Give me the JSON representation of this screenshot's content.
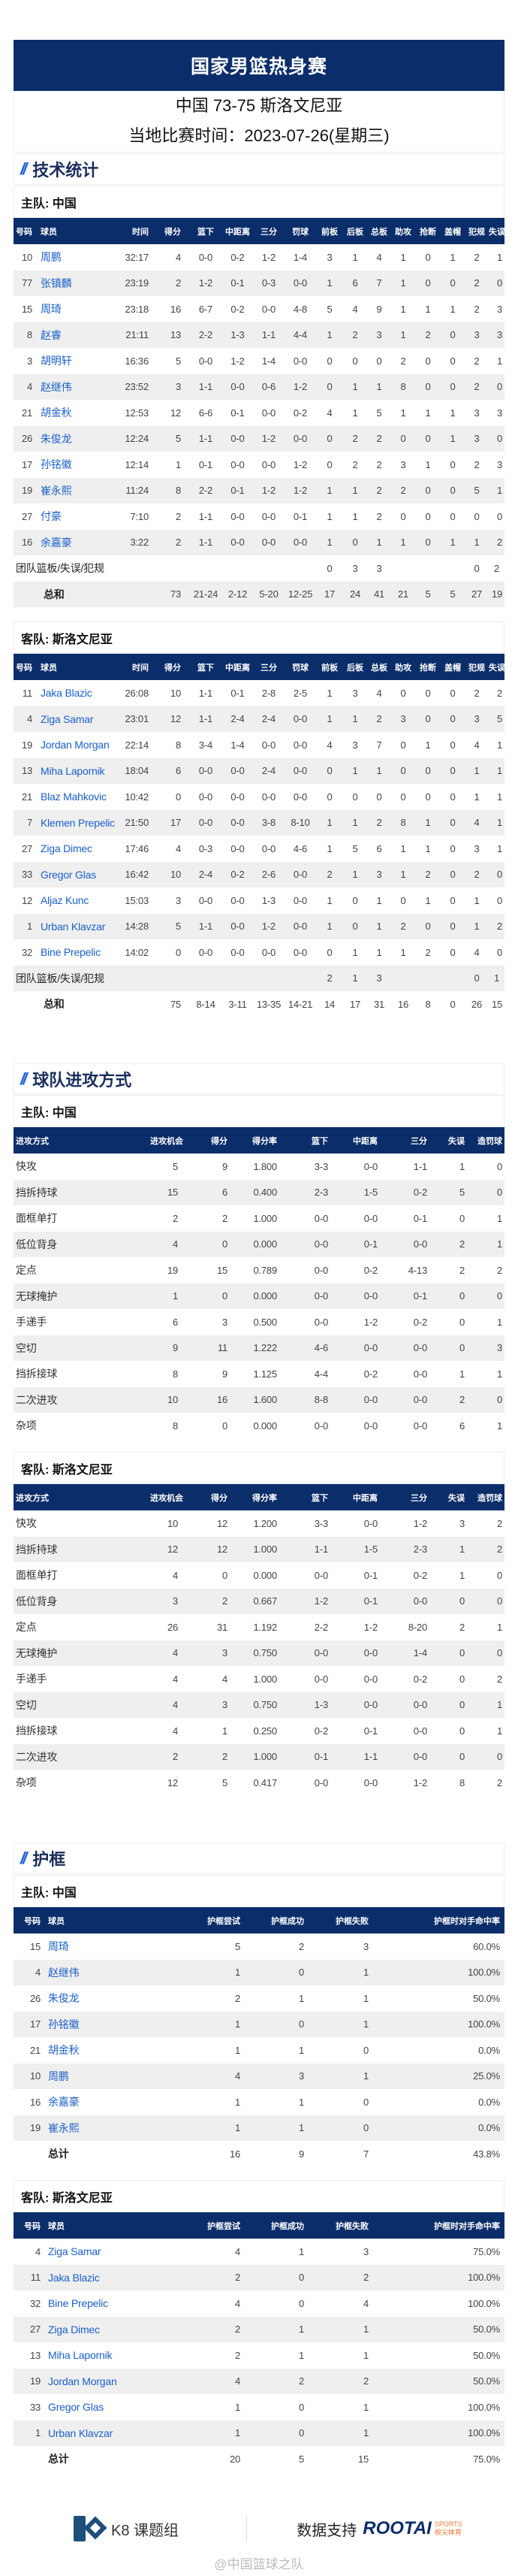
{
  "colors": {
    "navy": "#0b2e6a",
    "accent": "#1f5fd6",
    "name": "#1a5fc8",
    "row_alt": "#efefef"
  },
  "header": {
    "title": "国家男篮热身赛",
    "score_line": "中国 73-75 斯洛文尼亚",
    "date_line": "当地比赛时间：2023-07-26(星期三)"
  },
  "sections": {
    "stats": "技术统计",
    "offense": "球队进攻方式",
    "rim": "护框",
    "slash": "//"
  },
  "teams": {
    "home": "主队: 中国",
    "away": "客队: 斯洛文尼亚"
  },
  "box_headers": [
    "号码",
    "球员",
    "时间",
    "得分",
    "篮下",
    "中距离",
    "三分",
    "罚球",
    "前板",
    "后板",
    "总板",
    "助攻",
    "抢断",
    "盖帽",
    "犯规",
    "失误"
  ],
  "box_home": {
    "rows": [
      [
        "10",
        "周鹏",
        "32:17",
        "4",
        "0-0",
        "0-2",
        "1-2",
        "1-4",
        "3",
        "1",
        "4",
        "1",
        "0",
        "1",
        "2",
        "1"
      ],
      [
        "77",
        "张镇麟",
        "23:19",
        "2",
        "1-2",
        "0-1",
        "0-3",
        "0-0",
        "1",
        "6",
        "7",
        "1",
        "0",
        "0",
        "2",
        "0"
      ],
      [
        "15",
        "周琦",
        "23:18",
        "16",
        "6-7",
        "0-2",
        "0-0",
        "4-8",
        "5",
        "4",
        "9",
        "1",
        "1",
        "1",
        "2",
        "3"
      ],
      [
        "8",
        "赵睿",
        "21:11",
        "13",
        "2-2",
        "1-3",
        "1-1",
        "4-4",
        "1",
        "2",
        "3",
        "1",
        "2",
        "0",
        "3",
        "3"
      ],
      [
        "3",
        "胡明轩",
        "16:36",
        "5",
        "0-0",
        "1-2",
        "1-4",
        "0-0",
        "0",
        "0",
        "0",
        "2",
        "0",
        "0",
        "2",
        "1"
      ],
      [
        "4",
        "赵继伟",
        "23:52",
        "3",
        "1-1",
        "0-0",
        "0-6",
        "1-2",
        "0",
        "1",
        "1",
        "8",
        "0",
        "0",
        "2",
        "0"
      ],
      [
        "21",
        "胡金秋",
        "12:53",
        "12",
        "6-6",
        "0-1",
        "0-0",
        "0-2",
        "4",
        "1",
        "5",
        "1",
        "1",
        "1",
        "3",
        "3"
      ],
      [
        "26",
        "朱俊龙",
        "12:24",
        "5",
        "1-1",
        "0-0",
        "1-2",
        "0-0",
        "0",
        "2",
        "2",
        "0",
        "0",
        "1",
        "3",
        "0"
      ],
      [
        "17",
        "孙铭徽",
        "12:14",
        "1",
        "0-1",
        "0-0",
        "0-0",
        "1-2",
        "0",
        "2",
        "2",
        "3",
        "1",
        "0",
        "2",
        "3"
      ],
      [
        "19",
        "崔永熙",
        "11:24",
        "8",
        "2-2",
        "0-1",
        "1-2",
        "1-2",
        "1",
        "1",
        "2",
        "2",
        "0",
        "0",
        "5",
        "1"
      ],
      [
        "27",
        "付豪",
        "7:10",
        "2",
        "1-1",
        "0-0",
        "0-0",
        "0-1",
        "1",
        "1",
        "2",
        "0",
        "0",
        "0",
        "0",
        "0"
      ],
      [
        "16",
        "余嘉豪",
        "3:22",
        "2",
        "1-1",
        "0-0",
        "0-0",
        "0-0",
        "1",
        "0",
        "1",
        "1",
        "0",
        "1",
        "1",
        "2"
      ]
    ],
    "team_row": {
      "label": "团队篮板/失误/犯规",
      "values": [
        "",
        "",
        "",
        "",
        "",
        "0",
        "3",
        "3",
        "",
        "",
        "",
        "0",
        "2"
      ]
    },
    "total_row": {
      "label": "总和",
      "values": [
        "73",
        "21-24",
        "2-12",
        "5-20",
        "12-25",
        "17",
        "24",
        "41",
        "21",
        "5",
        "5",
        "27",
        "19"
      ]
    }
  },
  "box_away": {
    "rows": [
      [
        "11",
        "Jaka Blazic",
        "26:08",
        "10",
        "1-1",
        "0-1",
        "2-8",
        "2-5",
        "1",
        "3",
        "4",
        "0",
        "0",
        "0",
        "2",
        "2"
      ],
      [
        "4",
        "Ziga Samar",
        "23:01",
        "12",
        "1-1",
        "2-4",
        "2-4",
        "0-0",
        "1",
        "1",
        "2",
        "3",
        "0",
        "0",
        "3",
        "5"
      ],
      [
        "19",
        "Jordan Morgan",
        "22:14",
        "8",
        "3-4",
        "1-4",
        "0-0",
        "0-0",
        "4",
        "3",
        "7",
        "0",
        "1",
        "0",
        "4",
        "1"
      ],
      [
        "13",
        "Miha Lapornik",
        "18:04",
        "6",
        "0-0",
        "0-0",
        "2-4",
        "0-0",
        "0",
        "1",
        "1",
        "0",
        "0",
        "0",
        "1",
        "1"
      ],
      [
        "21",
        "Blaz Mahkovic",
        "10:42",
        "0",
        "0-0",
        "0-0",
        "0-0",
        "0-0",
        "0",
        "0",
        "0",
        "0",
        "0",
        "0",
        "1",
        "1"
      ],
      [
        "7",
        "Klemen Prepelic",
        "21:50",
        "17",
        "0-0",
        "0-0",
        "3-8",
        "8-10",
        "1",
        "1",
        "2",
        "8",
        "1",
        "0",
        "4",
        "1"
      ],
      [
        "27",
        "Ziga Dimec",
        "17:46",
        "4",
        "0-3",
        "0-0",
        "0-0",
        "4-6",
        "1",
        "5",
        "6",
        "1",
        "1",
        "0",
        "3",
        "1"
      ],
      [
        "33",
        "Gregor Glas",
        "16:42",
        "10",
        "2-4",
        "0-2",
        "2-6",
        "0-0",
        "2",
        "1",
        "3",
        "1",
        "2",
        "0",
        "2",
        "0"
      ],
      [
        "12",
        "Aljaz Kunc",
        "15:03",
        "3",
        "0-0",
        "0-0",
        "1-3",
        "0-0",
        "1",
        "0",
        "1",
        "0",
        "1",
        "0",
        "1",
        "0"
      ],
      [
        "1",
        "Urban Klavzar",
        "14:28",
        "5",
        "1-1",
        "0-0",
        "1-2",
        "0-0",
        "1",
        "0",
        "1",
        "2",
        "0",
        "0",
        "1",
        "2"
      ],
      [
        "32",
        "Bine Prepelic",
        "14:02",
        "0",
        "0-0",
        "0-0",
        "0-0",
        "0-0",
        "0",
        "1",
        "1",
        "1",
        "2",
        "0",
        "4",
        "0"
      ]
    ],
    "team_row": {
      "label": "团队篮板/失误/犯规",
      "values": [
        "",
        "",
        "",
        "",
        "",
        "2",
        "1",
        "3",
        "",
        "",
        "",
        "0",
        "1"
      ]
    },
    "total_row": {
      "label": "总和",
      "values": [
        "75",
        "8-14",
        "3-11",
        "13-35",
        "14-21",
        "14",
        "17",
        "31",
        "16",
        "8",
        "0",
        "26",
        "15"
      ]
    }
  },
  "off_headers": [
    "进攻方式",
    "进攻机会",
    "得分",
    "得分率",
    "篮下",
    "中距离",
    "三分",
    "失误",
    "造罚球"
  ],
  "off_home": [
    [
      "快攻",
      "5",
      "9",
      "1.800",
      "3-3",
      "0-0",
      "1-1",
      "1",
      "0"
    ],
    [
      "挡拆持球",
      "15",
      "6",
      "0.400",
      "2-3",
      "1-5",
      "0-2",
      "5",
      "0"
    ],
    [
      "面框单打",
      "2",
      "2",
      "1.000",
      "0-0",
      "0-0",
      "0-1",
      "0",
      "1"
    ],
    [
      "低位背身",
      "4",
      "0",
      "0.000",
      "0-0",
      "0-1",
      "0-0",
      "2",
      "1"
    ],
    [
      "定点",
      "19",
      "15",
      "0.789",
      "0-0",
      "0-2",
      "4-13",
      "2",
      "2"
    ],
    [
      "无球掩护",
      "1",
      "0",
      "0.000",
      "0-0",
      "0-0",
      "0-1",
      "0",
      "0"
    ],
    [
      "手递手",
      "6",
      "3",
      "0.500",
      "0-0",
      "1-2",
      "0-2",
      "0",
      "1"
    ],
    [
      "空切",
      "9",
      "11",
      "1.222",
      "4-6",
      "0-0",
      "0-0",
      "0",
      "3"
    ],
    [
      "挡拆接球",
      "8",
      "9",
      "1.125",
      "4-4",
      "0-2",
      "0-0",
      "1",
      "1"
    ],
    [
      "二次进攻",
      "10",
      "16",
      "1.600",
      "8-8",
      "0-0",
      "0-0",
      "2",
      "0"
    ],
    [
      "杂项",
      "8",
      "0",
      "0.000",
      "0-0",
      "0-0",
      "0-0",
      "6",
      "1"
    ]
  ],
  "off_away": [
    [
      "快攻",
      "10",
      "12",
      "1.200",
      "3-3",
      "0-0",
      "1-2",
      "3",
      "2"
    ],
    [
      "挡拆持球",
      "12",
      "12",
      "1.000",
      "1-1",
      "1-5",
      "2-3",
      "1",
      "2"
    ],
    [
      "面框单打",
      "4",
      "0",
      "0.000",
      "0-0",
      "0-1",
      "0-2",
      "1",
      "0"
    ],
    [
      "低位背身",
      "3",
      "2",
      "0.667",
      "1-2",
      "0-1",
      "0-0",
      "0",
      "0"
    ],
    [
      "定点",
      "26",
      "31",
      "1.192",
      "2-2",
      "1-2",
      "8-20",
      "2",
      "1"
    ],
    [
      "无球掩护",
      "4",
      "3",
      "0.750",
      "0-0",
      "0-0",
      "1-4",
      "0",
      "0"
    ],
    [
      "手递手",
      "4",
      "4",
      "1.000",
      "0-0",
      "0-0",
      "0-2",
      "0",
      "2"
    ],
    [
      "空切",
      "4",
      "3",
      "0.750",
      "1-3",
      "0-0",
      "0-0",
      "0",
      "1"
    ],
    [
      "挡拆接球",
      "4",
      "1",
      "0.250",
      "0-2",
      "0-1",
      "0-0",
      "0",
      "1"
    ],
    [
      "二次进攻",
      "2",
      "2",
      "1.000",
      "0-1",
      "1-1",
      "0-0",
      "0",
      "0"
    ],
    [
      "杂项",
      "12",
      "5",
      "0.417",
      "0-0",
      "0-0",
      "1-2",
      "8",
      "2"
    ]
  ],
  "rim_headers": [
    "号码",
    "球员",
    "护框尝试",
    "护框成功",
    "护框失败",
    "护框时对手命中率"
  ],
  "rim_home": {
    "rows": [
      [
        "15",
        "周琦",
        "5",
        "2",
        "3",
        "60.0%"
      ],
      [
        "4",
        "赵继伟",
        "1",
        "0",
        "1",
        "100.0%"
      ],
      [
        "26",
        "朱俊龙",
        "2",
        "1",
        "1",
        "50.0%"
      ],
      [
        "17",
        "孙铭徽",
        "1",
        "0",
        "1",
        "100.0%"
      ],
      [
        "21",
        "胡金秋",
        "1",
        "1",
        "0",
        "0.0%"
      ],
      [
        "10",
        "周鹏",
        "4",
        "3",
        "1",
        "25.0%"
      ],
      [
        "16",
        "余嘉豪",
        "1",
        "1",
        "0",
        "0.0%"
      ],
      [
        "19",
        "崔永熙",
        "1",
        "1",
        "0",
        "0.0%"
      ]
    ],
    "total_row": {
      "label": "总计",
      "values": [
        "16",
        "9",
        "7",
        "43.8%"
      ]
    }
  },
  "rim_away": {
    "rows": [
      [
        "4",
        "Ziga Samar",
        "4",
        "1",
        "3",
        "75.0%"
      ],
      [
        "11",
        "Jaka Blazic",
        "2",
        "0",
        "2",
        "100.0%"
      ],
      [
        "32",
        "Bine Prepelic",
        "4",
        "0",
        "4",
        "100.0%"
      ],
      [
        "27",
        "Ziga Dimec",
        "2",
        "1",
        "1",
        "50.0%"
      ],
      [
        "13",
        "Miha Lapornik",
        "2",
        "1",
        "1",
        "50.0%"
      ],
      [
        "19",
        "Jordan Morgan",
        "4",
        "2",
        "2",
        "50.0%"
      ],
      [
        "33",
        "Gregor Glas",
        "1",
        "0",
        "1",
        "100.0%"
      ],
      [
        "1",
        "Urban Klavzar",
        "1",
        "0",
        "1",
        "100.0%"
      ]
    ],
    "total_row": {
      "label": "总计",
      "values": [
        "20",
        "5",
        "15",
        "75.0%"
      ]
    }
  },
  "footer": {
    "k8": "K8 课题组",
    "support": "数据支持",
    "rootai": "ROOTAI",
    "sports": "SPORTS",
    "rootai_cn": "根尖体育",
    "watermark": "@中国篮球之队"
  }
}
